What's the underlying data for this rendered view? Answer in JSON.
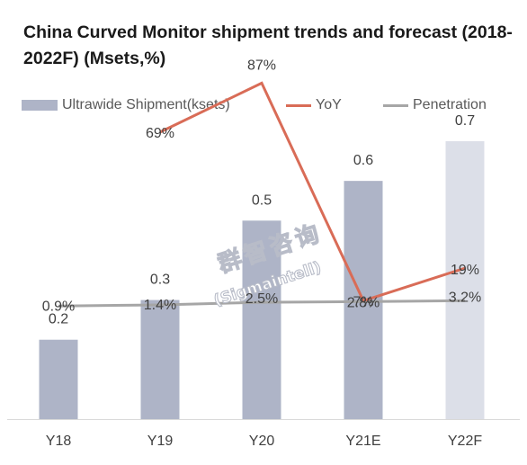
{
  "title": "China Curved Monitor shipment trends and forecast (2018-2022F) (Msets,%)",
  "watermark": {
    "cn": "群智咨询",
    "en": "(Sigmaintell)"
  },
  "colors": {
    "bar": "#aeb4c7",
    "bar_forecast": "#dcdfe8",
    "yoy": "#d96c57",
    "penetration": "#a6a6a6"
  },
  "chart_data": {
    "type": "bar",
    "categories": [
      "Y18",
      "Y19",
      "Y20",
      "Y21E",
      "Y22F"
    ],
    "series": [
      {
        "name": "Ultrawide Shipment(ksets)",
        "type": "bar",
        "values": [
          0.2,
          0.3,
          0.5,
          0.6,
          0.7
        ],
        "labels": [
          "0.2",
          "0.3",
          "0.5",
          "0.6",
          "0.7"
        ],
        "forecast_index": 4
      },
      {
        "name": "YoY",
        "type": "line",
        "values": [
          null,
          69,
          87,
          7,
          19
        ],
        "labels": [
          "",
          "69%",
          "87%",
          "7%",
          "19%"
        ]
      },
      {
        "name": "Penetration",
        "type": "line",
        "values": [
          0.9,
          1.4,
          2.5,
          2.8,
          3.2
        ],
        "labels": [
          "0.9%",
          "1.4%",
          "2.5%",
          "2.8%",
          "3.2%"
        ]
      }
    ],
    "legend_position": "top",
    "grid": false
  }
}
